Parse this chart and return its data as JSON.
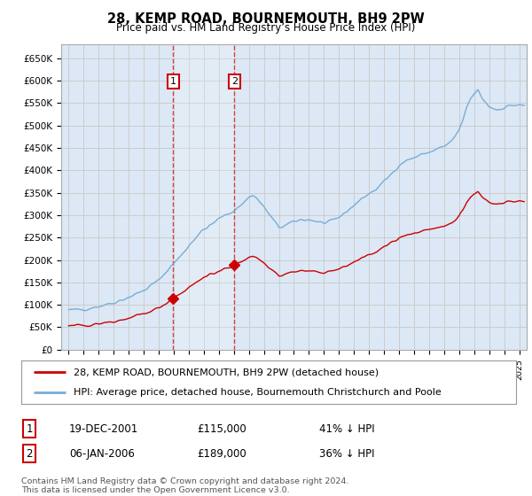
{
  "title": "28, KEMP ROAD, BOURNEMOUTH, BH9 2PW",
  "subtitle": "Price paid vs. HM Land Registry’s House Price Index (HPI)",
  "background_color": "#ffffff",
  "grid_color": "#cccccc",
  "plot_bg_color": "#dce8f5",
  "hpi_color": "#7aadd4",
  "price_color": "#cc0000",
  "sale1_x": 2001.96,
  "sale1_price": 115000,
  "sale1_label": "19-DEC-2001",
  "sale1_amount": "£115,000",
  "sale1_hpi": "41% ↓ HPI",
  "sale2_x": 2006.04,
  "sale2_price": 189000,
  "sale2_label": "06-JAN-2006",
  "sale2_amount": "£189,000",
  "sale2_hpi": "36% ↓ HPI",
  "legend_line1": "28, KEMP ROAD, BOURNEMOUTH, BH9 2PW (detached house)",
  "legend_line2": "HPI: Average price, detached house, Bournemouth Christchurch and Poole",
  "footer": "Contains HM Land Registry data © Crown copyright and database right 2024.\nThis data is licensed under the Open Government Licence v3.0.",
  "ylim": [
    0,
    680000
  ],
  "yticks": [
    0,
    50000,
    100000,
    150000,
    200000,
    250000,
    300000,
    350000,
    400000,
    450000,
    500000,
    550000,
    600000,
    650000
  ],
  "ytick_labels": [
    "£0",
    "£50K",
    "£100K",
    "£150K",
    "£200K",
    "£250K",
    "£300K",
    "£350K",
    "£400K",
    "£450K",
    "£500K",
    "£550K",
    "£600K",
    "£650K"
  ],
  "xlim_left": 1994.5,
  "xlim_right": 2025.5
}
